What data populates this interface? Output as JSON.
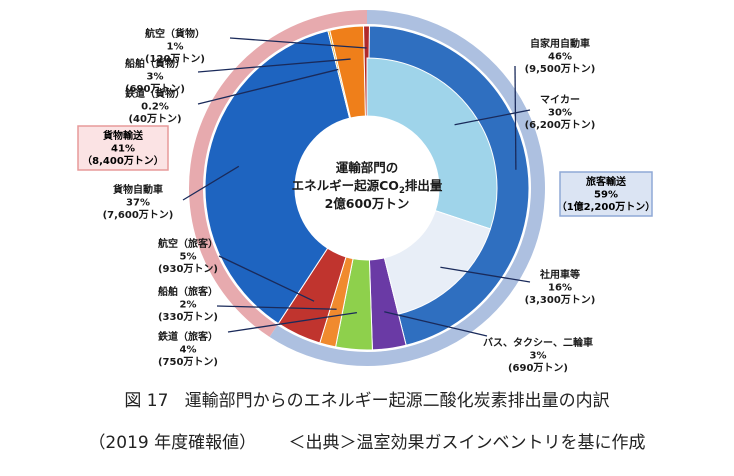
{
  "chart_data": {
    "type": "pie",
    "title": "運輸部門からのエネルギー起源二酸化炭素排出量の内訳",
    "total": 20600,
    "unit": "万トン",
    "center_text": [
      "運輸部門の",
      "エネルギー起源CO",
      "2",
      "排出量",
      "2億600万トン"
    ],
    "groups": [
      {
        "name": "旅客輸送",
        "share": "59%",
        "amount": "（1億2,200万トン）",
        "value": 12200,
        "color": "#adc0e0",
        "box_fill": "#dbe4f3",
        "box_stroke": "#8fa9d6"
      },
      {
        "name": "貨物輸送",
        "share": "41%",
        "amount": "（8,400万トン）",
        "value": 8400,
        "color": "#e7aaae",
        "box_fill": "#fbe3e4",
        "box_stroke": "#e79a9a"
      }
    ],
    "slices": [
      {
        "name": "自家用自動車",
        "pct": "46%",
        "amount": "(9,500万トン)",
        "value": 9500,
        "color": "#2f6fc0",
        "group": "旅客輸送"
      },
      {
        "name": "マイカー",
        "pct": "30%",
        "amount": "(6,200万トン)",
        "value": 6200,
        "color": "#9fd4ea",
        "group": "旅客輸送",
        "sub": true
      },
      {
        "name": "社用車等",
        "pct": "16%",
        "amount": "(3,300万トン)",
        "value": 3300,
        "color": "#e8eef7",
        "group": "旅客輸送",
        "sub": true
      },
      {
        "name": "バス、タクシー、二輪車",
        "pct": "3%",
        "amount": "(690万トン)",
        "value": 690,
        "color": "#6a3aa5",
        "group": "旅客輸送"
      },
      {
        "name": "鉄道（旅客）",
        "pct": "4%",
        "amount": "(750万トン)",
        "value": 750,
        "color": "#8ed04c",
        "group": "旅客輸送"
      },
      {
        "name": "船舶（旅客）",
        "pct": "2%",
        "amount": "(330万トン)",
        "value": 330,
        "color": "#f08a2e",
        "group": "旅客輸送"
      },
      {
        "name": "航空（旅客）",
        "pct": "5%",
        "amount": "(930万トン)",
        "value": 930,
        "color": "#c0342e",
        "group": "旅客輸送"
      },
      {
        "name": "貨物自動車",
        "pct": "37%",
        "amount": "(7,600万トン)",
        "value": 7600,
        "color": "#1e64c0",
        "group": "貨物輸送"
      },
      {
        "name": "鉄道（貨物）",
        "pct": "0.2%",
        "amount": "(40万トン)",
        "value": 40,
        "color": "#e5a51e",
        "group": "貨物輸送"
      },
      {
        "name": "船舶（貨物）",
        "pct": "3%",
        "amount": "(690万トン)",
        "value": 690,
        "color": "#ef7f1a",
        "group": "貨物輸送"
      },
      {
        "name": "航空（貨物）",
        "pct": "1%",
        "amount": "(120万トン)",
        "value": 120,
        "color": "#b02a2a",
        "group": "貨物輸送"
      }
    ]
  },
  "caption": {
    "figure": "図 17",
    "title": "運輸部門からのエネルギー起源二酸化炭素排出量の内訳",
    "year": "（2019 年度確報値）",
    "source": "＜出典＞温室効果ガスインベントリを基に作成"
  }
}
